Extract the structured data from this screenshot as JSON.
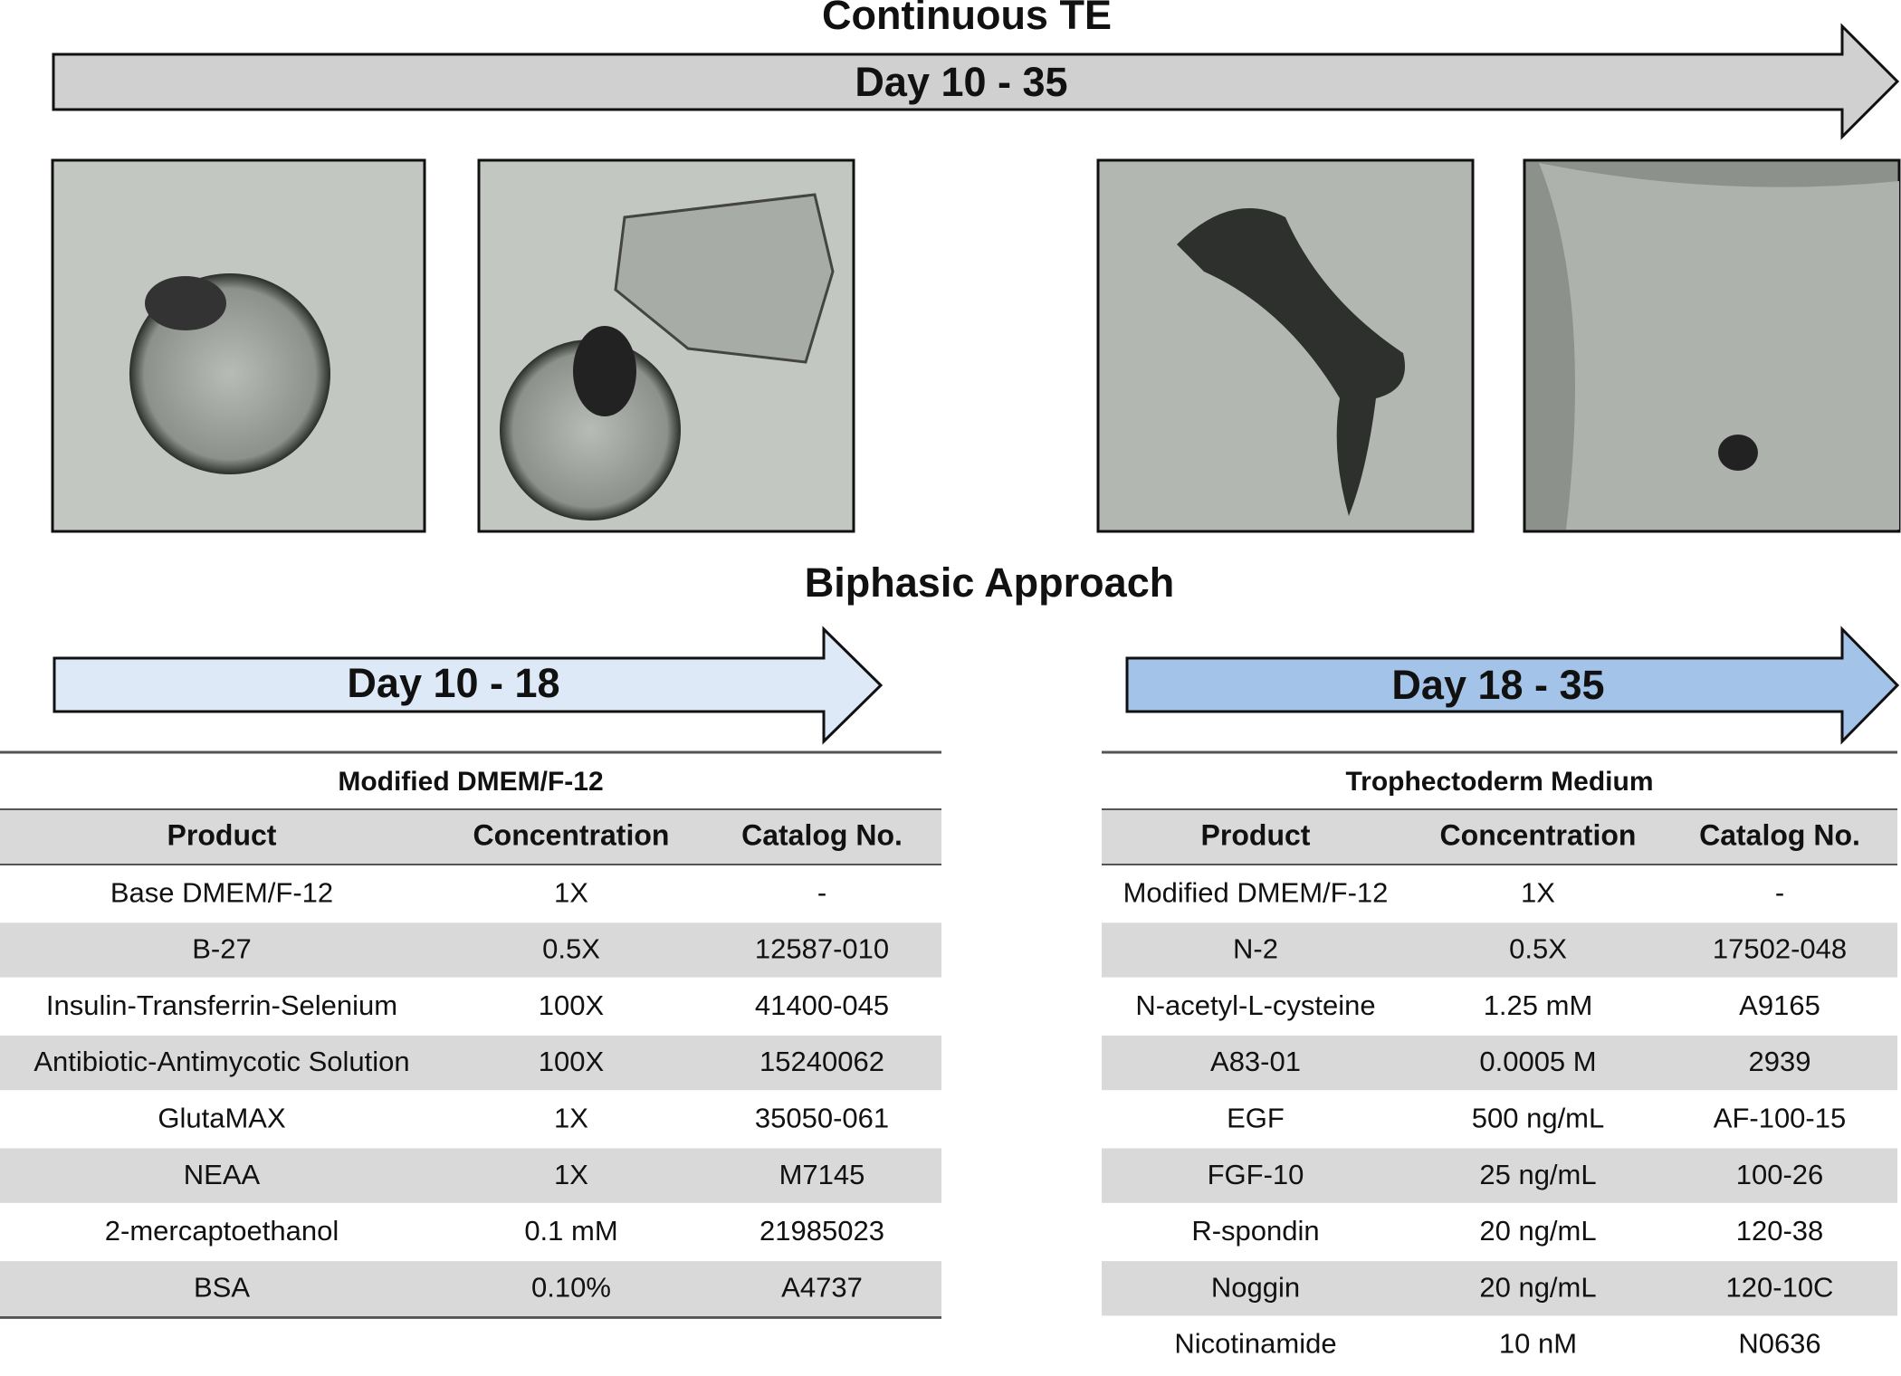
{
  "header": {
    "title": "Continuous TE",
    "arrow_label": "Day 10 - 35"
  },
  "section_title": "Biphasic Approach",
  "phases": [
    {
      "arrow_label": "Day 10 - 18",
      "table": {
        "title": "Modified DMEM/F-12",
        "columns": [
          "Product",
          "Concentration",
          "Catalog No."
        ],
        "rows": [
          [
            "Base DMEM/F-12",
            "1X",
            "-"
          ],
          [
            "B-27",
            "0.5X",
            "12587-010"
          ],
          [
            "Insulin-Transferrin-Selenium",
            "100X",
            "41400-045"
          ],
          [
            "Antibiotic-Antimycotic Solution",
            "100X",
            "15240062"
          ],
          [
            "GlutaMAX",
            "1X",
            "35050-061"
          ],
          [
            "NEAA",
            "1X",
            "M7145"
          ],
          [
            "2-mercaptoethanol",
            "0.1 mM",
            "21985023"
          ],
          [
            "BSA",
            "0.10%",
            "A4737"
          ]
        ]
      }
    },
    {
      "arrow_label": "Day 18 - 35",
      "table": {
        "title": "Trophectoderm Medium",
        "columns": [
          "Product",
          "Concentration",
          "Catalog No."
        ],
        "rows": [
          [
            "Modified DMEM/F-12",
            "1X",
            "-"
          ],
          [
            "N-2",
            "0.5X",
            "17502-048"
          ],
          [
            "N-acetyl-L-cysteine",
            "1.25 mM",
            "A9165"
          ],
          [
            "A83-01",
            "0.0005 M",
            "2939"
          ],
          [
            "EGF",
            "500 ng/mL",
            "AF-100-15"
          ],
          [
            "FGF-10",
            "25 ng/mL",
            "100-26"
          ],
          [
            "R-spondin",
            "20 ng/mL",
            "120-38"
          ],
          [
            "Noggin",
            "20 ng/mL",
            "120-10C"
          ],
          [
            "Nicotinamide",
            "10 nM",
            "N0636"
          ]
        ]
      }
    }
  ]
}
